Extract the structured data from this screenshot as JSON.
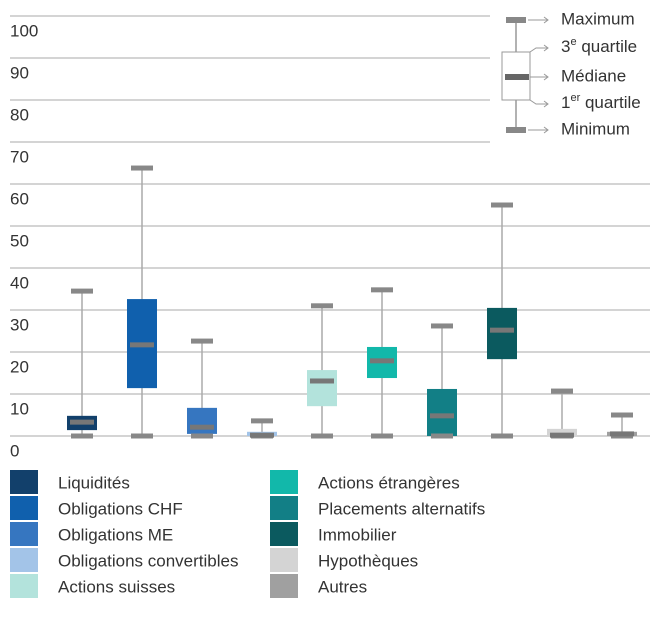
{
  "chart_data": {
    "type": "box",
    "ylim": [
      0,
      100
    ],
    "yticks": [
      0,
      10,
      20,
      30,
      40,
      50,
      60,
      70,
      80,
      90,
      100
    ],
    "grid": true,
    "series": [
      {
        "name": "Liquidités",
        "color": "#12406b",
        "min": 0,
        "q1": 1.4,
        "median": 3.3,
        "q3": 4.8,
        "max": 34.5
      },
      {
        "name": "Obligations CHF",
        "color": "#1060ad",
        "min": 0,
        "q1": 11.4,
        "median": 21.7,
        "q3": 32.6,
        "max": 63.8
      },
      {
        "name": "Obligations ME",
        "color": "#3676c0",
        "min": 0,
        "q1": 0.5,
        "median": 2.1,
        "q3": 6.7,
        "max": 22.6
      },
      {
        "name": "Obligations convertibles",
        "color": "#a3c4e8",
        "min": 0,
        "q1": 0,
        "median": 0.2,
        "q3": 1,
        "max": 3.6
      },
      {
        "name": "Actions suisses",
        "color": "#b3e3dc",
        "min": 0,
        "q1": 7.1,
        "median": 13.1,
        "q3": 15.7,
        "max": 31
      },
      {
        "name": "Actions étrangères",
        "color": "#12b8aa",
        "min": 0,
        "q1": 13.8,
        "median": 17.9,
        "q3": 21.2,
        "max": 34.8
      },
      {
        "name": "Placements alternatifs",
        "color": "#127f86",
        "min": 0,
        "q1": 0,
        "median": 4.8,
        "q3": 11.2,
        "max": 26.2
      },
      {
        "name": "Immobilier",
        "color": "#0b5a5f",
        "min": 0,
        "q1": 18.3,
        "median": 25.2,
        "q3": 30.5,
        "max": 55
      },
      {
        "name": "Hypothèques",
        "color": "#d4d4d4",
        "min": 0,
        "q1": 0,
        "median": 0.2,
        "q3": 1.7,
        "max": 10.7
      },
      {
        "name": "Autres",
        "color": "#a0a0a0",
        "min": 0,
        "q1": 0,
        "median": 0.5,
        "q3": 1,
        "max": 5
      }
    ],
    "key": {
      "maximum": "Maximum",
      "q3": {
        "num": "3",
        "sup": "e",
        "rest": " quartile"
      },
      "median": "Médiane",
      "q1": {
        "num": "1",
        "sup": "er",
        "rest": " quartile"
      },
      "minimum": "Minimum"
    }
  }
}
